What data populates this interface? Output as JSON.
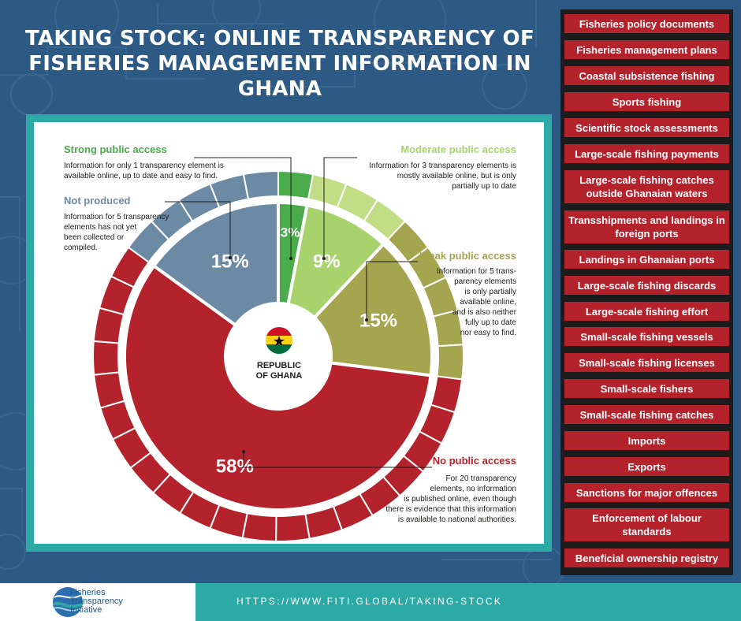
{
  "title": {
    "line1": "TAKING STOCK: ONLINE TRANSPARENCY OF",
    "line2": "FISHERIES MANAGEMENT INFORMATION IN GHANA"
  },
  "center": {
    "line1": "REPUBLIC",
    "line2": "OF GHANA"
  },
  "chart_data": {
    "type": "pie",
    "subtype": "donut",
    "categories": [
      "Strong public access",
      "Moderate public access",
      "Weak public access",
      "No public access",
      "Not produced"
    ],
    "values": [
      3,
      9,
      15,
      58,
      15
    ],
    "element_counts": [
      1,
      3,
      5,
      20,
      5
    ],
    "value_labels": [
      "3%",
      "9%",
      "15%",
      "58%",
      "15%"
    ],
    "colors": [
      "#4aab4a",
      "#a8d36c",
      "#a5a44f",
      "#b4222c",
      "#6d8aa5"
    ],
    "outer_ring_colors": [
      "#4aab4a",
      "#c1dd86",
      "#a5a44f",
      "#b4222c",
      "#6d8aa5"
    ]
  },
  "annotations": {
    "strong": {
      "label": "Strong public access",
      "lines": [
        "Information for only 1 transparency element is",
        "available online, up to date and easy to find."
      ]
    },
    "moderate": {
      "label": "Moderate public access",
      "lines": [
        "Information for 3 transparency elements is",
        "mostly available online, but is only",
        "partially up to date"
      ]
    },
    "weak": {
      "label": "Weak public access",
      "lines": [
        "Information for 5 trans-",
        "parency elements",
        "is only partially",
        "available online,",
        "and is also neither",
        "fully up to date",
        "nor easy to find."
      ]
    },
    "notproduced": {
      "label": "Not produced",
      "lines": [
        "Information for 5 transparency",
        "elements has not yet",
        "been collected or",
        "compiled."
      ]
    },
    "nopublic": {
      "label": "No public access",
      "lines": [
        "For 20 transparency",
        "elements, no information",
        "is published online, even though",
        "there is evidence that this information",
        "is available to national authorities."
      ]
    }
  },
  "sidebar": {
    "items": [
      "Fisheries policy documents",
      "Fisheries management plans",
      "Coastal subsistence fishing",
      "Sports fishing",
      "Scientific stock assessments",
      "Large-scale fishing payments",
      "Large-scale fishing catches outside Ghanaian waters",
      "Transshipments and landings in foreign ports",
      "Landings in Ghanaian ports",
      "Large-scale fishing discards",
      "Large-scale fishing effort",
      "Small-scale fishing vessels",
      "Small-scale fishing licenses",
      "Small-scale fishers",
      "Small-scale fishing catches",
      "Imports",
      "Exports",
      "Sanctions for major offences",
      "Enforcement of labour standards",
      "Beneficial ownership registry"
    ]
  },
  "footer": {
    "url": "HTTPS://WWW.FITI.GLOBAL/TAKING-STOCK",
    "logo_lines": [
      "Fisheries",
      "Transparency",
      "Initiative"
    ]
  },
  "colors": {
    "background": "#2d5a84",
    "teal": "#2eaaa6",
    "red": "#b4222c",
    "sidebar_bg": "#1c1c1c"
  }
}
